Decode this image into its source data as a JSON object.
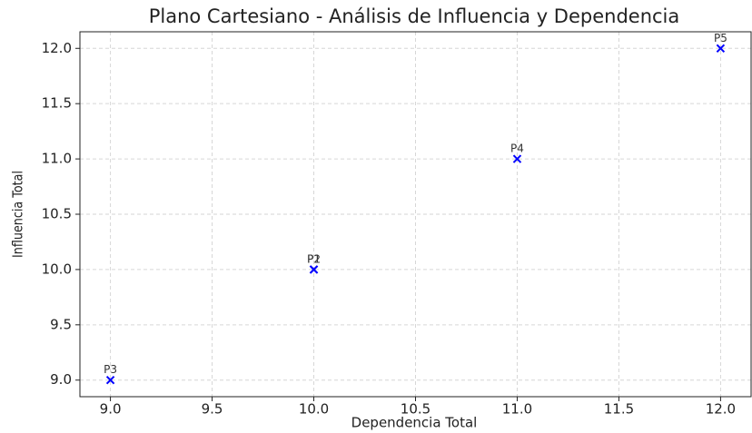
{
  "chart_data": {
    "type": "scatter",
    "title": "Plano Cartesiano - Análisis de Influencia y Dependencia",
    "x_label": "Dependencia Total",
    "y_label": "Influencia Total",
    "labels": [
      "P1",
      "P2",
      "P3",
      "P4",
      "P5"
    ],
    "x": [
      10,
      10,
      9,
      11,
      12
    ],
    "values": [
      10,
      10,
      9,
      11,
      12
    ],
    "color": "#0000ff",
    "marker": "x",
    "grid": true,
    "xlim": [
      8.85,
      12.15
    ],
    "ylim": [
      8.85,
      12.15
    ],
    "xticks": [
      {
        "value": 9,
        "label": "9.0"
      },
      {
        "value": 9.5,
        "label": "9.5"
      },
      {
        "value": 10,
        "label": "10.0"
      },
      {
        "value": 10.5,
        "label": "10.5"
      },
      {
        "value": 11,
        "label": "11.0"
      },
      {
        "value": 11.5,
        "label": "11.5"
      },
      {
        "value": 12,
        "label": "12.0"
      }
    ],
    "yticks": [
      {
        "value": 9,
        "label": "9.0"
      },
      {
        "value": 9.5,
        "label": "9.5"
      },
      {
        "value": 10,
        "label": "10.0"
      },
      {
        "value": 10.5,
        "label": "10.5"
      },
      {
        "value": 11,
        "label": "11.0"
      },
      {
        "value": 11.5,
        "label": "11.5"
      },
      {
        "value": 12,
        "label": "12.0"
      }
    ]
  }
}
